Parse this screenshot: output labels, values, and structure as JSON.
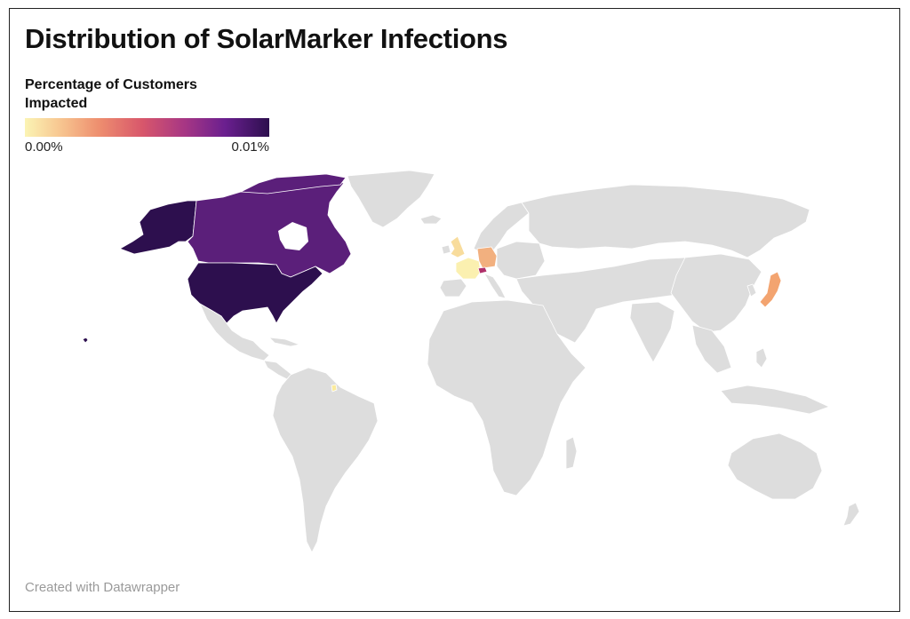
{
  "title": "Distribution of SolarMarker Infections",
  "legend": {
    "title": "Percentage of Customers Impacted",
    "min_label": "0.00%",
    "max_label": "0.01%",
    "color_scale": [
      "#fbf4b4",
      "#f7c48f",
      "#ee8f6f",
      "#d8576b",
      "#a83784",
      "#6a1f8f",
      "#2d0f4e"
    ]
  },
  "map": {
    "base_color": "#dddddd",
    "border_color": "#ffffff",
    "highlighted_countries": [
      {
        "name": "United States",
        "color": "#2d0f4e"
      },
      {
        "name": "Canada",
        "color": "#5b1f7a"
      },
      {
        "name": "France",
        "color": "#fbf0b0"
      },
      {
        "name": "United Kingdom",
        "color": "#f8dc9c"
      },
      {
        "name": "Germany",
        "color": "#f2b07f"
      },
      {
        "name": "Switzerland",
        "color": "#b0306a"
      },
      {
        "name": "Japan",
        "color": "#f3a470"
      },
      {
        "name": "French Guiana",
        "color": "#fbeb9c"
      }
    ]
  },
  "footer": "Created with Datawrapper"
}
